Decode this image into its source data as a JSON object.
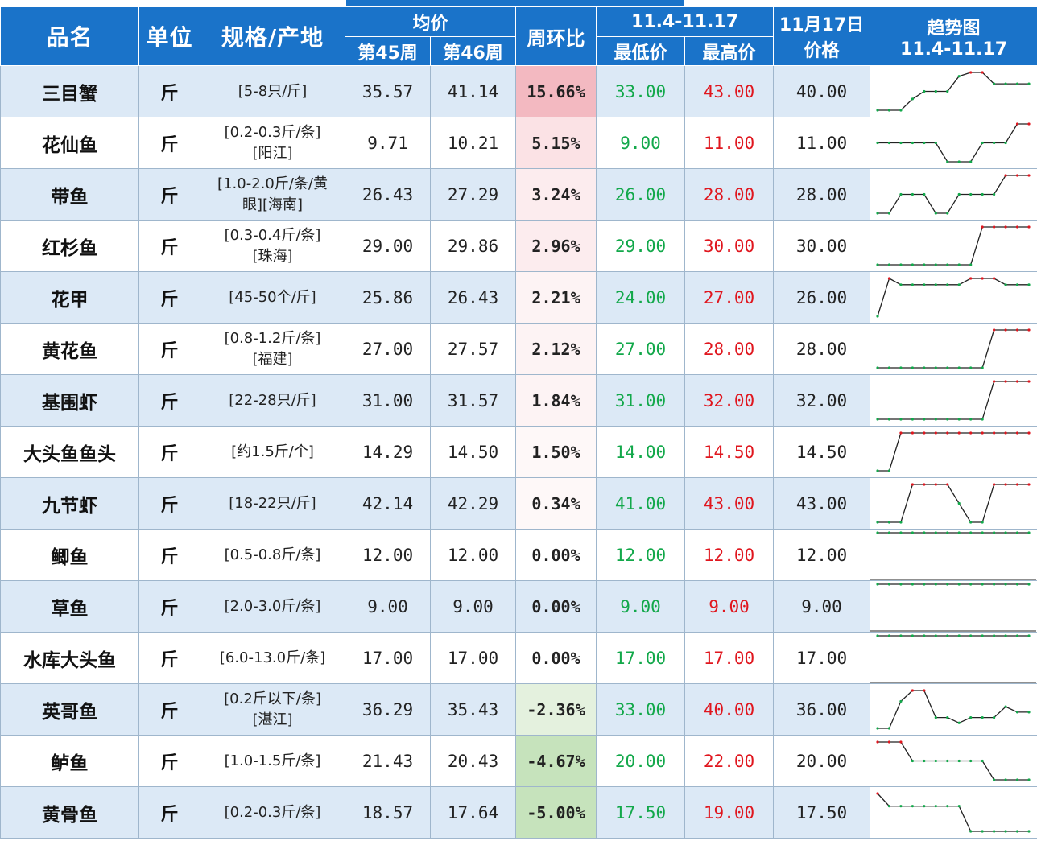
{
  "header": {
    "name": "品名",
    "unit": "单位",
    "spec": "规格/产地",
    "avg": "均价",
    "week45": "第45周",
    "week46": "第46周",
    "wow": "周环比",
    "range": "11.4-11.17",
    "min": "最低价",
    "max": "最高价",
    "date_price_line1": "11月17日",
    "date_price_line2": "价格",
    "trend_line1": "趋势图",
    "trend_line2": "11.4-11.17"
  },
  "colors": {
    "header_bg": "#1a73c9",
    "row_alt": "#dce9f6",
    "low_green": "#12a84a",
    "high_red": "#e0161e",
    "pct_pos_strong": "#f3b9c1",
    "pct_neg_strong": "#c6e3bc"
  },
  "rows": [
    {
      "name": "三目蟹",
      "unit": "斤",
      "spec1": "[5-8只/斤]",
      "spec2": "",
      "w45": "35.57",
      "w46": "41.14",
      "pct": "15.66%",
      "pct_val": 15.66,
      "min": "33.00",
      "max": "43.00",
      "price": "40.00",
      "trend": [
        33,
        33,
        33,
        36,
        38,
        38,
        38,
        42,
        43,
        43,
        40,
        40,
        40,
        40
      ]
    },
    {
      "name": "花仙鱼",
      "unit": "斤",
      "spec1": "[0.2-0.3斤/条]",
      "spec2": "[阳江]",
      "w45": "9.71",
      "w46": "10.21",
      "pct": "5.15%",
      "pct_val": 5.15,
      "min": "9.00",
      "max": "11.00",
      "price": "11.00",
      "trend": [
        10,
        10,
        10,
        10,
        10,
        10,
        9,
        9,
        9,
        10,
        10,
        10,
        11,
        11
      ]
    },
    {
      "name": "带鱼",
      "unit": "斤",
      "spec1": "[1.0-2.0斤/条/黄",
      "spec2": "眼][海南]",
      "w45": "26.43",
      "w46": "27.29",
      "pct": "3.24%",
      "pct_val": 3.24,
      "min": "26.00",
      "max": "28.00",
      "price": "28.00",
      "trend": [
        26,
        26,
        27,
        27,
        27,
        26,
        26,
        27,
        27,
        27,
        27,
        28,
        28,
        28
      ]
    },
    {
      "name": "红杉鱼",
      "unit": "斤",
      "spec1": "[0.3-0.4斤/条]",
      "spec2": "[珠海]",
      "w45": "29.00",
      "w46": "29.86",
      "pct": "2.96%",
      "pct_val": 2.96,
      "min": "29.00",
      "max": "30.00",
      "price": "30.00",
      "trend": [
        29,
        29,
        29,
        29,
        29,
        29,
        29,
        29,
        29,
        30,
        30,
        30,
        30,
        30
      ]
    },
    {
      "name": "花甲",
      "unit": "斤",
      "spec1": "[45-50个/斤]",
      "spec2": "",
      "w45": "25.86",
      "w46": "26.43",
      "pct": "2.21%",
      "pct_val": 2.21,
      "min": "24.00",
      "max": "27.00",
      "price": "26.00",
      "trend": [
        24,
        27,
        26.5,
        26.5,
        26.5,
        26.5,
        26.5,
        26.5,
        27,
        27,
        27,
        26.5,
        26.5,
        26.5
      ]
    },
    {
      "name": "黄花鱼",
      "unit": "斤",
      "spec1": "[0.8-1.2斤/条]",
      "spec2": "[福建]",
      "w45": "27.00",
      "w46": "27.57",
      "pct": "2.12%",
      "pct_val": 2.12,
      "min": "27.00",
      "max": "28.00",
      "price": "28.00",
      "trend": [
        27,
        27,
        27,
        27,
        27,
        27,
        27,
        27,
        27,
        27,
        28,
        28,
        28,
        28
      ]
    },
    {
      "name": "基围虾",
      "unit": "斤",
      "spec1": "[22-28只/斤]",
      "spec2": "",
      "w45": "31.00",
      "w46": "31.57",
      "pct": "1.84%",
      "pct_val": 1.84,
      "min": "31.00",
      "max": "32.00",
      "price": "32.00",
      "trend": [
        31,
        31,
        31,
        31,
        31,
        31,
        31,
        31,
        31,
        31,
        32,
        32,
        32,
        32
      ]
    },
    {
      "name": "大头鱼鱼头",
      "unit": "斤",
      "spec1": "[约1.5斤/个]",
      "spec2": "",
      "w45": "14.29",
      "w46": "14.50",
      "pct": "1.50%",
      "pct_val": 1.5,
      "min": "14.00",
      "max": "14.50",
      "price": "14.50",
      "trend": [
        14,
        14,
        14.5,
        14.5,
        14.5,
        14.5,
        14.5,
        14.5,
        14.5,
        14.5,
        14.5,
        14.5,
        14.5,
        14.5
      ]
    },
    {
      "name": "九节虾",
      "unit": "斤",
      "spec1": "[18-22只/斤]",
      "spec2": "",
      "w45": "42.14",
      "w46": "42.29",
      "pct": "0.34%",
      "pct_val": 0.34,
      "min": "41.00",
      "max": "43.00",
      "price": "43.00",
      "trend": [
        41,
        41,
        41,
        43,
        43,
        43,
        43,
        42,
        41,
        41,
        43,
        43,
        43,
        43
      ]
    },
    {
      "name": "鲫鱼",
      "unit": "斤",
      "spec1": "[0.5-0.8斤/条]",
      "spec2": "",
      "w45": "12.00",
      "w46": "12.00",
      "pct": "0.00%",
      "pct_val": 0,
      "min": "12.00",
      "max": "12.00",
      "price": "12.00",
      "trend": [
        12,
        12,
        12,
        12,
        12,
        12,
        12,
        12,
        12,
        12,
        12,
        12,
        12,
        12
      ]
    },
    {
      "name": "草鱼",
      "unit": "斤",
      "spec1": "[2.0-3.0斤/条]",
      "spec2": "",
      "w45": "9.00",
      "w46": "9.00",
      "pct": "0.00%",
      "pct_val": 0,
      "min": "9.00",
      "max": "9.00",
      "price": "9.00",
      "trend": [
        9,
        9,
        9,
        9,
        9,
        9,
        9,
        9,
        9,
        9,
        9,
        9,
        9,
        9
      ]
    },
    {
      "name": "水库大头鱼",
      "unit": "斤",
      "spec1": "[6.0-13.0斤/条]",
      "spec2": "",
      "w45": "17.00",
      "w46": "17.00",
      "pct": "0.00%",
      "pct_val": 0,
      "min": "17.00",
      "max": "17.00",
      "price": "17.00",
      "trend": [
        17,
        17,
        17,
        17,
        17,
        17,
        17,
        17,
        17,
        17,
        17,
        17,
        17,
        17
      ]
    },
    {
      "name": "英哥鱼",
      "unit": "斤",
      "spec1": "[0.2斤以下/条]",
      "spec2": "[湛江]",
      "w45": "36.29",
      "w46": "35.43",
      "pct": "-2.36%",
      "pct_val": -2.36,
      "min": "33.00",
      "max": "40.00",
      "price": "36.00",
      "trend": [
        33,
        33,
        38,
        40,
        40,
        35,
        35,
        34,
        35,
        35,
        35,
        37,
        36,
        36
      ]
    },
    {
      "name": "鲈鱼",
      "unit": "斤",
      "spec1": "[1.0-1.5斤/条]",
      "spec2": "",
      "w45": "21.43",
      "w46": "20.43",
      "pct": "-4.67%",
      "pct_val": -4.67,
      "min": "20.00",
      "max": "22.00",
      "price": "20.00",
      "trend": [
        22,
        22,
        22,
        21,
        21,
        21,
        21,
        21,
        21,
        21,
        20,
        20,
        20,
        20
      ]
    },
    {
      "name": "黄骨鱼",
      "unit": "斤",
      "spec1": "[0.2-0.3斤/条]",
      "spec2": "",
      "w45": "18.57",
      "w46": "17.64",
      "pct": "-5.00%",
      "pct_val": -5.0,
      "min": "17.50",
      "max": "19.00",
      "price": "17.50",
      "trend": [
        19,
        18.5,
        18.5,
        18.5,
        18.5,
        18.5,
        18.5,
        18.5,
        17.5,
        17.5,
        17.5,
        17.5,
        17.5,
        17.5
      ]
    }
  ]
}
